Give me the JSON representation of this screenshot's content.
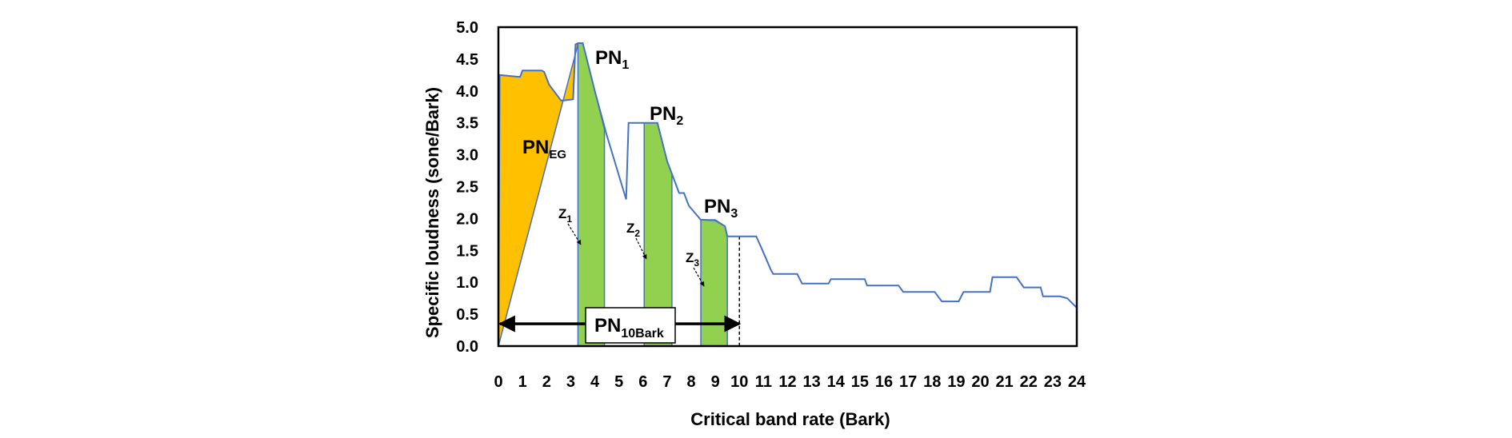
{
  "chart_data": {
    "type": "line",
    "title": "",
    "xlabel": "Critical band rate (Bark)",
    "ylabel": "Specific loudness (sone/Bark)",
    "xlim": [
      0,
      24
    ],
    "ylim": [
      0,
      5
    ],
    "x_ticks": [
      "0",
      "1",
      "2",
      "3",
      "4",
      "5",
      "6",
      "7",
      "8",
      "9",
      "10",
      "11",
      "12",
      "13",
      "14",
      "15",
      "16",
      "17",
      "18",
      "19",
      "20",
      "21",
      "22",
      "23",
      "24"
    ],
    "y_ticks": [
      "0.0",
      "0.5",
      "1.0",
      "1.5",
      "2.0",
      "2.5",
      "3.0",
      "3.5",
      "4.0",
      "4.5",
      "5.0"
    ],
    "series": [
      {
        "name": "Specific loudness",
        "color": "#4472C4",
        "x": [
          0,
          0.05,
          0.9,
          1.0,
          1.8,
          1.9,
          2.1,
          2.6,
          2.7,
          3.1,
          3.2,
          3.3,
          3.5,
          3.6,
          4.0,
          4.5,
          5.3,
          5.4,
          5.5,
          5.95,
          6.05,
          6.2,
          6.6,
          7.0,
          7.5,
          7.7,
          7.9,
          8.4,
          8.5,
          9.0,
          9.4,
          9.5,
          9.9,
          10.7,
          10.9,
          11.3,
          11.4,
          12.4,
          12.6,
          13.7,
          13.8,
          15.2,
          15.3,
          16.6,
          16.8,
          18.1,
          18.4,
          19.1,
          19.3,
          20.4,
          20.5,
          21.5,
          21.8,
          22.5,
          22.6,
          23.3,
          23.6,
          24.0
        ],
        "y": [
          0,
          4.25,
          4.22,
          4.32,
          4.32,
          4.3,
          4.1,
          3.85,
          3.85,
          3.87,
          4.73,
          4.75,
          4.75,
          4.6,
          4.0,
          3.3,
          2.3,
          3.5,
          3.5,
          3.5,
          3.5,
          3.5,
          3.5,
          2.9,
          2.4,
          2.4,
          2.2,
          1.98,
          1.98,
          1.97,
          1.88,
          1.72,
          1.72,
          1.72,
          1.55,
          1.2,
          1.13,
          1.13,
          0.98,
          0.98,
          1.05,
          1.05,
          0.95,
          0.95,
          0.85,
          0.85,
          0.7,
          0.7,
          0.85,
          0.85,
          1.08,
          1.08,
          0.92,
          0.92,
          0.78,
          0.78,
          0.75,
          0.6
        ]
      }
    ],
    "regions": [
      {
        "name": "PN_EG",
        "color": "#FFC000",
        "x": [
          0,
          0.05,
          0.9,
          1.0,
          1.8,
          1.9,
          2.1,
          2.6,
          2.7,
          3.1,
          3.2,
          3.3
        ],
        "y": [
          0,
          4.25,
          4.22,
          4.32,
          4.32,
          4.3,
          4.1,
          3.85,
          3.85,
          3.87,
          4.73,
          4.73
        ]
      },
      {
        "name": "PN_1",
        "color": "#92D050",
        "x": [
          3.3,
          3.3,
          3.5,
          3.6,
          4.0,
          4.4,
          4.4
        ],
        "y": [
          0,
          4.75,
          4.75,
          4.6,
          4.0,
          3.4,
          0
        ]
      },
      {
        "name": "PN_2",
        "color": "#92D050",
        "x": [
          6.05,
          6.05,
          6.6,
          7.0,
          7.2,
          7.2
        ],
        "y": [
          0,
          3.5,
          3.5,
          2.9,
          2.7,
          0
        ]
      },
      {
        "name": "PN_3",
        "color": "#92D050",
        "x": [
          8.4,
          8.4,
          9.0,
          9.4,
          9.5,
          9.5
        ],
        "y": [
          0,
          1.98,
          1.98,
          1.88,
          1.72,
          0
        ]
      }
    ],
    "labels": {
      "pn1": "PN",
      "pn1_sub": "1",
      "pn2": "PN",
      "pn2_sub": "2",
      "pn3": "PN",
      "pn3_sub": "3",
      "pneg": "PN",
      "pneg_sub": "EG",
      "pn10": "PN",
      "pn10_sub": "10Bark",
      "z1": "Z",
      "z1_sub": "1",
      "z2": "Z",
      "z2_sub": "2",
      "z3": "Z",
      "z3_sub": "3"
    },
    "cutoff_line_x": 10,
    "arrow_span": [
      0,
      10
    ],
    "arrow_y": 0.35
  }
}
